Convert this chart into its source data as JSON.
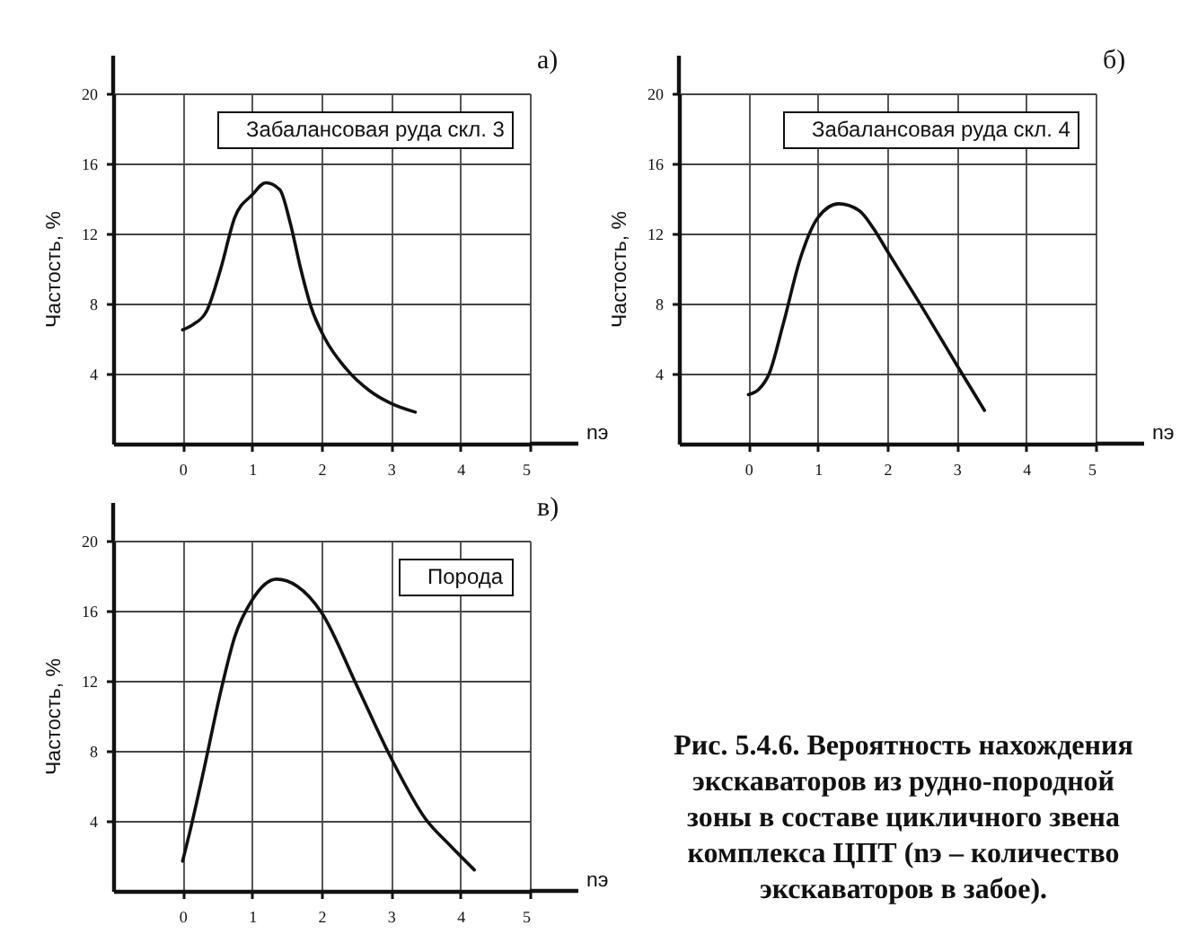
{
  "chart_data": [
    {
      "type": "line",
      "title": "а)",
      "xlabel": "nэ",
      "ylabel": "Частость, %",
      "legend": "top right",
      "xlim": [
        -1,
        5
      ],
      "ylim": [
        0,
        20
      ],
      "xticks": [
        0,
        1,
        2,
        3,
        4,
        5
      ],
      "yticks": [
        4,
        8,
        12,
        16,
        20
      ],
      "grid": true,
      "series": [
        {
          "name": "Забалансовая руда скл. 3",
          "color": "#111111",
          "x": [
            0,
            0.15,
            0.35,
            0.55,
            0.75,
            1.0,
            1.2,
            1.4,
            1.55,
            1.7,
            1.85,
            2.05,
            2.35,
            2.7,
            3.0,
            3.35
          ],
          "values": [
            6.5,
            6.8,
            7.6,
            10.0,
            12.9,
            14.2,
            14.9,
            14.5,
            12.6,
            10.0,
            7.8,
            6.0,
            4.3,
            3.0,
            2.3,
            1.8
          ]
        }
      ]
    },
    {
      "type": "line",
      "title": "б)",
      "xlabel": "nэ",
      "ylabel": "Частость, %",
      "legend": "top right",
      "xlim": [
        -1,
        5
      ],
      "ylim": [
        0,
        20
      ],
      "xticks": [
        0,
        1,
        2,
        3,
        4,
        5
      ],
      "yticks": [
        4,
        8,
        12,
        16,
        20
      ],
      "grid": true,
      "series": [
        {
          "name": "Забалансовая руда скл. 4",
          "color": "#111111",
          "x": [
            0,
            0.15,
            0.3,
            0.5,
            0.75,
            1.0,
            1.3,
            1.6,
            1.8,
            2.0,
            2.5,
            3.0,
            3.4
          ],
          "values": [
            2.8,
            3.1,
            4.0,
            6.8,
            10.6,
            12.9,
            13.7,
            13.3,
            12.3,
            11.0,
            7.8,
            4.5,
            1.9
          ]
        }
      ]
    },
    {
      "type": "line",
      "title": "в)",
      "xlabel": "nэ",
      "ylabel": "Частость, %",
      "legend": "top right",
      "xlim": [
        -1,
        5
      ],
      "ylim": [
        0,
        20
      ],
      "xticks": [
        0,
        1,
        2,
        3,
        4,
        5
      ],
      "yticks": [
        4,
        8,
        12,
        16,
        20
      ],
      "grid": true,
      "series": [
        {
          "name": "Порода",
          "color": "#111111",
          "x": [
            0,
            0.1,
            0.3,
            0.55,
            0.75,
            1.0,
            1.35,
            1.65,
            2.0,
            2.5,
            3.0,
            3.5,
            3.85,
            4.2
          ],
          "values": [
            1.7,
            3.3,
            6.8,
            11.4,
            14.5,
            16.6,
            17.8,
            17.4,
            15.9,
            11.8,
            7.6,
            4.1,
            2.6,
            1.2
          ]
        }
      ]
    },
    {
      "type": "other",
      "annotations": [
        "Рис. 5.4.6. Вероятность нахождения экскаваторов из рудно-породной зоны в составе цикличного звена комплекса ЦПТ (nэ – количество экскаваторов в забое)."
      ]
    }
  ]
}
